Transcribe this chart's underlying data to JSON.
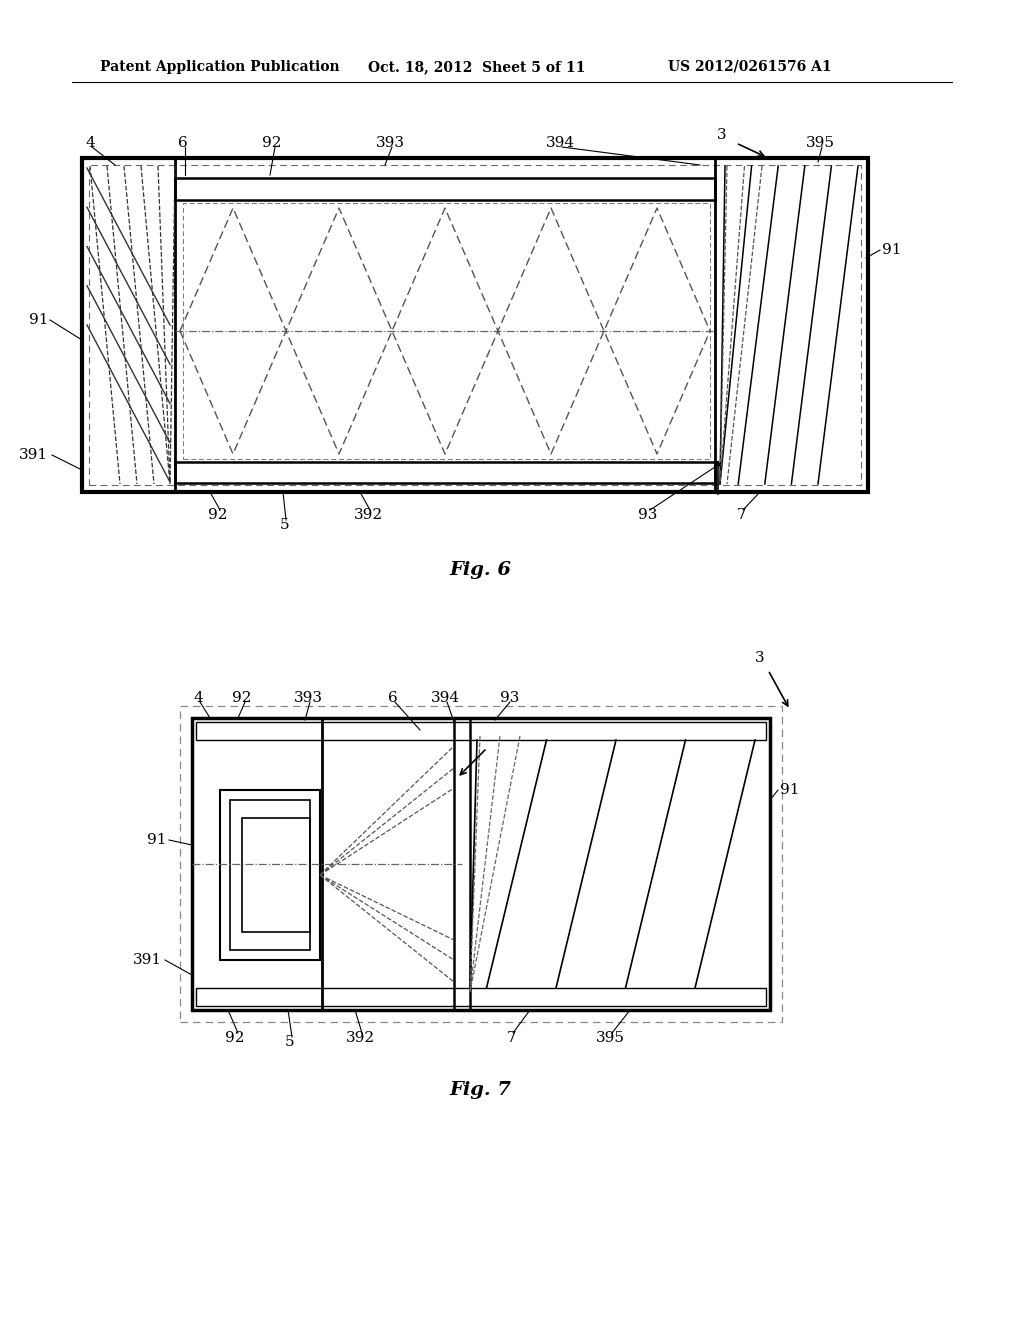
{
  "bg_color": "#ffffff",
  "line_color": "#000000",
  "header_text": "Patent Application Publication",
  "header_date": "Oct. 18, 2012  Sheet 5 of 11",
  "header_patent": "US 2012/0261576 A1",
  "fig6_label": "Fig. 6",
  "fig7_label": "Fig. 7"
}
